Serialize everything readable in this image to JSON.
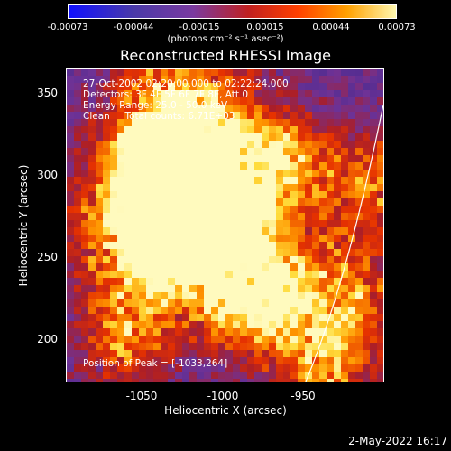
{
  "colorbar": {
    "ticks": [
      "-0.00073",
      "-0.00044",
      "-0.00015",
      "0.00015",
      "0.00044",
      "0.00073"
    ],
    "units": "(photons cm⁻² s⁻¹ asec⁻²)"
  },
  "title": "Reconstructed RHESSI Image",
  "info": {
    "line1": "27-Oct-2002 02:20:00.000 to 02:22:24.000",
    "line2": "Detectors: 3F 4F 5F 6F 7F 8F, Att 0",
    "line3": "Energy Range: 25.0 - 50.0 keV",
    "line4": "Clean     Total counts: 6.71E+03",
    "peak": "Position of Peak = [-1033,264]"
  },
  "axes": {
    "xlabel": "Heliocentric X (arcsec)",
    "ylabel": "Heliocentric Y (arcsec)",
    "xticks": [
      "-1050",
      "-1000",
      "-950"
    ],
    "yticks": [
      "350",
      "300",
      "250",
      "200"
    ]
  },
  "stamp": "2-May-2022 16:17"
}
